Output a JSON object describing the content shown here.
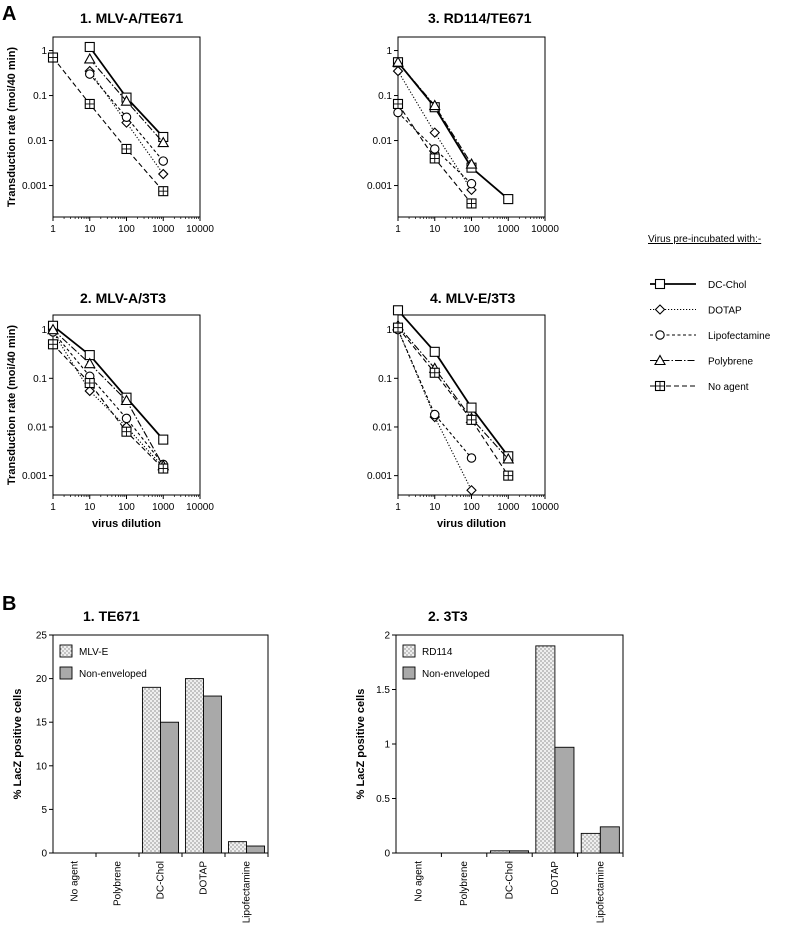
{
  "figure": {
    "panel_a_letter": "A",
    "panel_b_letter": "B"
  },
  "chart_data": [
    {
      "id": "a1",
      "type": "line",
      "title": "1.  MLV-A/TE671",
      "xscale": "log",
      "yscale": "log",
      "xlim": [
        1,
        10000
      ],
      "ylim": [
        0.0002,
        2
      ],
      "xticks": [
        "1",
        "10",
        "100",
        "1000",
        "10000"
      ],
      "yticks": [
        "0.001",
        "0.01",
        "0.1",
        "1"
      ],
      "ylabel": "Transduction  rate  (moi/40  min)",
      "xlabel": "",
      "series": [
        {
          "name": "DC-Chol",
          "x": [
            10,
            100,
            1000
          ],
          "y": [
            1.2,
            0.09,
            0.012
          ]
        },
        {
          "name": "DOTAP",
          "x": [
            10,
            100,
            1000
          ],
          "y": [
            0.35,
            0.025,
            0.0018
          ]
        },
        {
          "name": "Lipofectamine",
          "x": [
            10,
            100,
            1000
          ],
          "y": [
            0.3,
            0.033,
            0.0035
          ]
        },
        {
          "name": "Polybrene",
          "x": [
            10,
            100,
            1000
          ],
          "y": [
            0.65,
            0.075,
            0.009
          ]
        },
        {
          "name": "No agent",
          "x": [
            1,
            10,
            100,
            1000
          ],
          "y": [
            0.7,
            0.065,
            0.0065,
            0.00075
          ]
        }
      ]
    },
    {
      "id": "a3",
      "type": "line",
      "title": "3.  RD114/TE671",
      "xscale": "log",
      "yscale": "log",
      "xlim": [
        1,
        10000
      ],
      "ylim": [
        0.0002,
        2
      ],
      "xticks": [
        "1",
        "10",
        "100",
        "1000",
        "10000"
      ],
      "yticks": [
        "0.001",
        "0.01",
        "0.1",
        "1"
      ],
      "ylabel": "",
      "xlabel": "",
      "series": [
        {
          "name": "DC-Chol",
          "x": [
            1,
            10,
            100,
            1000
          ],
          "y": [
            0.55,
            0.055,
            0.0025,
            0.0005
          ]
        },
        {
          "name": "DOTAP",
          "x": [
            1,
            10,
            100
          ],
          "y": [
            0.35,
            0.015,
            0.0008
          ]
        },
        {
          "name": "Lipofectamine",
          "x": [
            1,
            10,
            100
          ],
          "y": [
            0.042,
            0.0065,
            0.0011
          ]
        },
        {
          "name": "Polybrene",
          "x": [
            1,
            10,
            100
          ],
          "y": [
            0.55,
            0.06,
            0.003
          ]
        },
        {
          "name": "No agent",
          "x": [
            1,
            10,
            100
          ],
          "y": [
            0.065,
            0.004,
            0.0004
          ]
        }
      ]
    },
    {
      "id": "a2",
      "type": "line",
      "title": "2.  MLV-A/3T3",
      "xscale": "log",
      "yscale": "log",
      "xlim": [
        1,
        10000
      ],
      "ylim": [
        0.0004,
        2
      ],
      "xticks": [
        "1",
        "10",
        "100",
        "1000",
        "10000"
      ],
      "yticks": [
        "0.001",
        "0.01",
        "0.1",
        "1"
      ],
      "ylabel": "Transduction  rate  (moi/40  min)",
      "xlabel": "virus dilution",
      "series": [
        {
          "name": "DC-Chol",
          "x": [
            1,
            10,
            100,
            1000
          ],
          "y": [
            1.2,
            0.3,
            0.04,
            0.0055
          ]
        },
        {
          "name": "DOTAP",
          "x": [
            1,
            10,
            100,
            1000
          ],
          "y": [
            0.9,
            0.055,
            0.01,
            0.0015
          ]
        },
        {
          "name": "Lipofectamine",
          "x": [
            1,
            10,
            100,
            1000
          ],
          "y": [
            0.9,
            0.11,
            0.015,
            0.0017
          ]
        },
        {
          "name": "Polybrene",
          "x": [
            1,
            10,
            100,
            1000
          ],
          "y": [
            1.0,
            0.2,
            0.035,
            0.0016
          ]
        },
        {
          "name": "No agent",
          "x": [
            1,
            10,
            100,
            1000
          ],
          "y": [
            0.5,
            0.08,
            0.008,
            0.0014
          ]
        }
      ]
    },
    {
      "id": "a4",
      "type": "line",
      "title": "4.  MLV-E/3T3",
      "xscale": "log",
      "yscale": "log",
      "xlim": [
        1,
        10000
      ],
      "ylim": [
        0.0004,
        2
      ],
      "xticks": [
        "1",
        "10",
        "100",
        "1000",
        "10000"
      ],
      "yticks": [
        "0.001",
        "0.01",
        "0.1",
        "1"
      ],
      "ylabel": "",
      "xlabel": "virus dilution",
      "series": [
        {
          "name": "DC-Chol",
          "x": [
            1,
            10,
            100,
            1000
          ],
          "y": [
            2.5,
            0.35,
            0.025,
            0.0025
          ]
        },
        {
          "name": "DOTAP",
          "x": [
            1,
            10,
            100
          ],
          "y": [
            1.0,
            0.016,
            0.0005
          ]
        },
        {
          "name": "Lipofectamine",
          "x": [
            1,
            10,
            100
          ],
          "y": [
            1.0,
            0.018,
            0.0023
          ]
        },
        {
          "name": "Polybrene",
          "x": [
            1,
            10,
            100,
            1000
          ],
          "y": [
            1.2,
            0.16,
            0.015,
            0.0022
          ]
        },
        {
          "name": "No agent",
          "x": [
            1,
            10,
            100,
            1000
          ],
          "y": [
            1.1,
            0.13,
            0.014,
            0.001
          ]
        }
      ]
    },
    {
      "id": "b1",
      "type": "bar",
      "title": "1.  TE671",
      "categories": [
        "No agent",
        "Polybrene",
        "DC-Chol",
        "DOTAP",
        "Lipofectamine"
      ],
      "ylim": [
        0,
        25
      ],
      "yticks": [
        "0",
        "5",
        "10",
        "15",
        "20",
        "25"
      ],
      "ylabel": "%  LacZ  positive  cells",
      "series": [
        {
          "name": "MLV-E",
          "values": [
            0,
            0,
            19,
            20,
            1.3
          ]
        },
        {
          "name": "Non-enveloped",
          "values": [
            0,
            0,
            15,
            18,
            0.8
          ]
        }
      ]
    },
    {
      "id": "b2",
      "type": "bar",
      "title": "2.  3T3",
      "categories": [
        "No agent",
        "Polybrene",
        "DC-Chol",
        "DOTAP",
        "Lipofectamine"
      ],
      "ylim": [
        0,
        2
      ],
      "yticks": [
        "0",
        "0.5",
        "1",
        "1.5",
        "2"
      ],
      "ylabel": "%  LacZ  positive  cells",
      "series": [
        {
          "name": "RD114",
          "values": [
            0,
            0,
            0.02,
            1.9,
            0.18
          ]
        },
        {
          "name": "Non-enveloped",
          "values": [
            0,
            0,
            0.02,
            0.97,
            0.24
          ]
        }
      ]
    }
  ],
  "legend": {
    "title": "Virus pre-incubated with:-",
    "items": [
      {
        "name": "DC-Chol",
        "marker": "square",
        "dash": "solid"
      },
      {
        "name": "DOTAP",
        "marker": "diamond",
        "dash": "dotted"
      },
      {
        "name": "Lipofectamine",
        "marker": "circle",
        "dash": "short-dash"
      },
      {
        "name": "Polybrene",
        "marker": "triangle",
        "dash": "dash-dot"
      },
      {
        "name": "No agent",
        "marker": "crossed-square",
        "dash": "long-dash"
      }
    ]
  },
  "colors": {
    "ink": "#000000",
    "dark_bar": "#a9a9a9",
    "light_bar": "#e4e4e4"
  }
}
